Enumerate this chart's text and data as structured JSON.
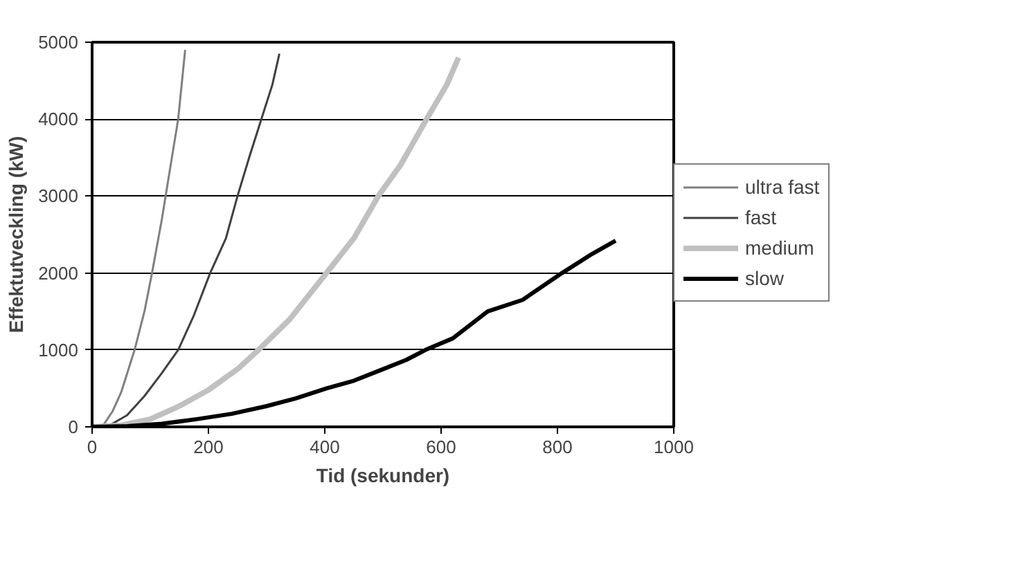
{
  "chart_data": {
    "type": "line",
    "xlabel": "Tid (sekunder)",
    "ylabel": "Effektutveckling (kW)",
    "xlim": [
      0,
      1000
    ],
    "xticks": [
      0,
      200,
      400,
      600,
      800,
      1000
    ],
    "ylim": [
      0,
      5000
    ],
    "yticks": [
      0,
      1000,
      2000,
      3000,
      4000,
      5000
    ],
    "grid": "y",
    "legend": "right",
    "marker": "none",
    "line_style": "solid",
    "series": [
      {
        "name": "ultra fast",
        "color": "#808080",
        "x": [
          0,
          20,
          35,
          50,
          73,
          90,
          103,
          120,
          135,
          148,
          160
        ],
        "values": [
          0,
          30,
          200,
          450,
          1000,
          1500,
          2000,
          2700,
          3400,
          4000,
          4900
        ]
      },
      {
        "name": "fast",
        "color": "#404040",
        "x": [
          0,
          30,
          60,
          90,
          120,
          148,
          175,
          203,
          230,
          250,
          270,
          291,
          310,
          322
        ],
        "values": [
          0,
          20,
          150,
          400,
          700,
          1000,
          1450,
          2000,
          2450,
          3000,
          3500,
          4000,
          4450,
          4850
        ]
      },
      {
        "name": "medium",
        "color": "#c0c0c0",
        "x": [
          0,
          50,
          100,
          150,
          200,
          250,
          286,
          340,
          403,
          450,
          492,
          530,
          575,
          610,
          630
        ],
        "values": [
          0,
          20,
          100,
          270,
          480,
          750,
          1000,
          1400,
          2000,
          2450,
          3000,
          3400,
          4000,
          4450,
          4800
        ]
      },
      {
        "name": "slow",
        "color": "#000000",
        "x": [
          0,
          60,
          120,
          180,
          240,
          300,
          350,
          403,
          450,
          500,
          540,
          573,
          620,
          680,
          740,
          808,
          860,
          900
        ],
        "values": [
          0,
          10,
          40,
          100,
          170,
          270,
          370,
          500,
          600,
          750,
          870,
          1000,
          1150,
          1500,
          1650,
          2000,
          2250,
          2420
        ]
      }
    ]
  }
}
